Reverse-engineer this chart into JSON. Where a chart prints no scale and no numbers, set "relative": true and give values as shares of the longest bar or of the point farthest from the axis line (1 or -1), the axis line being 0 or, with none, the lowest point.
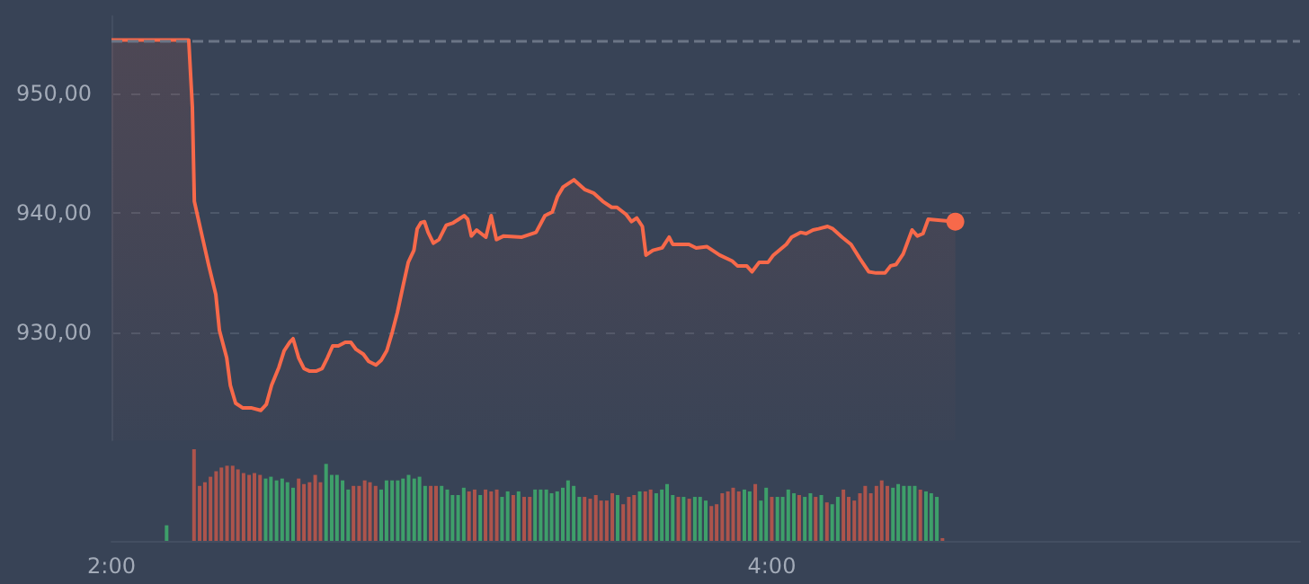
{
  "chart_data": [
    {
      "type": "area",
      "color": "#f7694a",
      "grid": "y",
      "tick_labels": "y",
      "xlim": [
        2,
        5.6
      ],
      "ylim": [
        921,
        956.5
      ],
      "yticks": [
        {
          "value": 930,
          "label": "930,00"
        },
        {
          "value": 940,
          "label": "940,00"
        },
        {
          "value": 950,
          "label": "950,00"
        }
      ],
      "ref_lines": [
        {
          "axis": "y",
          "value": 954.5,
          "line_style": "dashed",
          "color": "#6b7586"
        }
      ],
      "x": [
        2.0,
        2.234,
        2.245,
        2.251,
        2.272,
        2.294,
        2.316,
        2.327,
        2.349,
        2.36,
        2.376,
        2.398,
        2.425,
        2.452,
        2.469,
        2.485,
        2.507,
        2.523,
        2.54,
        2.55,
        2.567,
        2.583,
        2.599,
        2.621,
        2.638,
        2.654,
        2.67,
        2.687,
        2.708,
        2.725,
        2.741,
        2.763,
        2.779,
        2.801,
        2.817,
        2.834,
        2.85,
        2.866,
        2.883,
        2.899,
        2.916,
        2.926,
        2.937,
        2.948,
        2.959,
        2.975,
        2.992,
        3.003,
        3.014,
        3.035,
        3.052,
        3.068,
        3.079,
        3.09,
        3.106,
        3.134,
        3.15,
        3.166,
        3.188,
        3.243,
        3.286,
        3.313,
        3.335,
        3.351,
        3.368,
        3.401,
        3.433,
        3.46,
        3.488,
        3.515,
        3.531,
        3.559,
        3.575,
        3.591,
        3.608,
        3.619,
        3.64,
        3.668,
        3.689,
        3.7,
        3.749,
        3.771,
        3.804,
        3.842,
        3.88,
        3.896,
        3.924,
        3.94,
        3.962,
        3.989,
        4.005,
        4.044,
        4.06,
        4.087,
        4.104,
        4.125,
        4.142,
        4.169,
        4.185,
        4.213,
        4.24,
        4.267,
        4.294,
        4.316,
        4.343,
        4.36,
        4.376,
        4.398,
        4.425,
        4.441,
        4.458,
        4.474,
        4.556
      ],
      "values": [
        954.5,
        954.5,
        948.9,
        941.0,
        938.4,
        935.7,
        933.2,
        930.2,
        927.9,
        925.6,
        924.1,
        923.7,
        923.7,
        923.5,
        924.0,
        925.6,
        927.1,
        928.5,
        929.2,
        929.5,
        927.9,
        927.0,
        926.8,
        926.8,
        927.0,
        927.9,
        928.9,
        928.9,
        929.2,
        929.2,
        928.6,
        928.2,
        927.6,
        927.3,
        927.7,
        928.5,
        930.0,
        931.7,
        933.9,
        935.9,
        936.9,
        938.7,
        939.2,
        939.3,
        938.4,
        937.5,
        937.8,
        938.4,
        939.0,
        939.2,
        939.5,
        939.8,
        939.5,
        938.1,
        938.6,
        938.0,
        939.8,
        937.8,
        938.1,
        938.0,
        938.4,
        939.8,
        940.1,
        941.4,
        942.2,
        942.8,
        942.0,
        941.7,
        941.0,
        940.5,
        940.5,
        939.9,
        939.3,
        939.6,
        938.9,
        936.5,
        936.9,
        937.1,
        938.0,
        937.4,
        937.4,
        937.1,
        937.2,
        936.5,
        936.0,
        935.6,
        935.6,
        935.1,
        935.9,
        935.9,
        936.5,
        937.4,
        938.0,
        938.4,
        938.3,
        938.6,
        938.7,
        938.9,
        938.7,
        938.0,
        937.4,
        936.2,
        935.1,
        935.0,
        935.0,
        935.6,
        935.7,
        936.6,
        938.6,
        938.1,
        938.3,
        939.5,
        939.3
      ]
    },
    {
      "type": "bar",
      "relative": true,
      "tick_labels": "x",
      "xlim": [
        2,
        5.6
      ],
      "xticks": [
        {
          "value": 2,
          "label": "2:00"
        },
        {
          "value": 4,
          "label": "4:00"
        }
      ],
      "x": [
        2.167,
        2.25,
        2.267,
        2.283,
        2.3,
        2.317,
        2.333,
        2.35,
        2.367,
        2.383,
        2.4,
        2.417,
        2.433,
        2.45,
        2.467,
        2.483,
        2.5,
        2.517,
        2.533,
        2.55,
        2.567,
        2.583,
        2.6,
        2.617,
        2.633,
        2.65,
        2.667,
        2.683,
        2.7,
        2.717,
        2.733,
        2.75,
        2.767,
        2.783,
        2.8,
        2.817,
        2.833,
        2.85,
        2.867,
        2.883,
        2.9,
        2.917,
        2.933,
        2.95,
        2.967,
        2.983,
        3.0,
        3.017,
        3.033,
        3.05,
        3.067,
        3.083,
        3.1,
        3.117,
        3.133,
        3.15,
        3.167,
        3.183,
        3.2,
        3.217,
        3.233,
        3.25,
        3.267,
        3.283,
        3.3,
        3.317,
        3.333,
        3.35,
        3.367,
        3.383,
        3.4,
        3.417,
        3.433,
        3.45,
        3.467,
        3.483,
        3.5,
        3.517,
        3.533,
        3.55,
        3.567,
        3.583,
        3.6,
        3.617,
        3.633,
        3.65,
        3.667,
        3.683,
        3.7,
        3.717,
        3.733,
        3.75,
        3.767,
        3.783,
        3.8,
        3.817,
        3.833,
        3.85,
        3.867,
        3.883,
        3.9,
        3.917,
        3.933,
        3.95,
        3.967,
        3.983,
        4.0,
        4.017,
        4.033,
        4.05,
        4.067,
        4.083,
        4.1,
        4.117,
        4.133,
        4.15,
        4.167,
        4.183,
        4.2,
        4.217,
        4.233,
        4.25,
        4.267,
        4.283,
        4.3,
        4.317,
        4.333,
        4.35,
        4.367,
        4.383,
        4.4,
        4.417,
        4.433,
        4.45,
        4.467,
        4.483,
        4.5,
        4.517
      ],
      "values": [
        0.17,
        1.0,
        0.6,
        0.64,
        0.7,
        0.76,
        0.8,
        0.82,
        0.82,
        0.78,
        0.74,
        0.72,
        0.74,
        0.72,
        0.68,
        0.7,
        0.66,
        0.68,
        0.64,
        0.58,
        0.68,
        0.62,
        0.64,
        0.72,
        0.64,
        0.84,
        0.72,
        0.72,
        0.66,
        0.56,
        0.6,
        0.6,
        0.66,
        0.64,
        0.6,
        0.56,
        0.66,
        0.66,
        0.66,
        0.68,
        0.72,
        0.68,
        0.7,
        0.6,
        0.6,
        0.6,
        0.6,
        0.56,
        0.5,
        0.5,
        0.58,
        0.54,
        0.56,
        0.5,
        0.56,
        0.54,
        0.56,
        0.48,
        0.54,
        0.5,
        0.54,
        0.48,
        0.48,
        0.56,
        0.56,
        0.56,
        0.52,
        0.54,
        0.58,
        0.66,
        0.6,
        0.48,
        0.48,
        0.46,
        0.5,
        0.44,
        0.44,
        0.52,
        0.5,
        0.4,
        0.48,
        0.5,
        0.54,
        0.54,
        0.56,
        0.52,
        0.56,
        0.62,
        0.5,
        0.48,
        0.48,
        0.46,
        0.48,
        0.48,
        0.44,
        0.38,
        0.4,
        0.52,
        0.54,
        0.58,
        0.54,
        0.56,
        0.54,
        0.62,
        0.44,
        0.58,
        0.48,
        0.48,
        0.48,
        0.56,
        0.52,
        0.5,
        0.48,
        0.52,
        0.48,
        0.5,
        0.42,
        0.4,
        0.48,
        0.56,
        0.48,
        0.44,
        0.52,
        0.6,
        0.52,
        0.6,
        0.66,
        0.6,
        0.58,
        0.62,
        0.6,
        0.6,
        0.6,
        0.56,
        0.54,
        0.52,
        0.48,
        0.03
      ],
      "colors": [
        "#3e9f6a",
        "#ad544c",
        "#ad544c",
        "#ad544c",
        "#ad544c",
        "#ad544c",
        "#ad544c",
        "#ad544c",
        "#ad544c",
        "#ad544c",
        "#ad544c",
        "#ad544c",
        "#ad544c",
        "#ad544c",
        "#3e9f6a",
        "#3e9f6a",
        "#3e9f6a",
        "#3e9f6a",
        "#3e9f6a",
        "#3e9f6a",
        "#ad544c",
        "#ad544c",
        "#ad544c",
        "#ad544c",
        "#ad544c",
        "#3e9f6a",
        "#3e9f6a",
        "#3e9f6a",
        "#3e9f6a",
        "#3e9f6a",
        "#ad544c",
        "#ad544c",
        "#ad544c",
        "#ad544c",
        "#ad544c",
        "#3e9f6a",
        "#3e9f6a",
        "#3e9f6a",
        "#3e9f6a",
        "#3e9f6a",
        "#3e9f6a",
        "#3e9f6a",
        "#3e9f6a",
        "#3e9f6a",
        "#ad544c",
        "#ad544c",
        "#3e9f6a",
        "#3e9f6a",
        "#3e9f6a",
        "#3e9f6a",
        "#3e9f6a",
        "#ad544c",
        "#ad544c",
        "#3e9f6a",
        "#ad544c",
        "#ad544c",
        "#ad544c",
        "#3e9f6a",
        "#3e9f6a",
        "#ad544c",
        "#3e9f6a",
        "#ad544c",
        "#ad544c",
        "#3e9f6a",
        "#3e9f6a",
        "#3e9f6a",
        "#3e9f6a",
        "#3e9f6a",
        "#3e9f6a",
        "#3e9f6a",
        "#3e9f6a",
        "#3e9f6a",
        "#ad544c",
        "#ad544c",
        "#ad544c",
        "#ad544c",
        "#ad544c",
        "#ad544c",
        "#3e9f6a",
        "#ad544c",
        "#ad544c",
        "#ad544c",
        "#3e9f6a",
        "#ad544c",
        "#ad544c",
        "#3e9f6a",
        "#3e9f6a",
        "#3e9f6a",
        "#3e9f6a",
        "#ad544c",
        "#3e9f6a",
        "#ad544c",
        "#3e9f6a",
        "#3e9f6a",
        "#3e9f6a",
        "#ad544c",
        "#ad544c",
        "#ad544c",
        "#ad544c",
        "#ad544c",
        "#ad544c",
        "#3e9f6a",
        "#3e9f6a",
        "#ad544c",
        "#3e9f6a",
        "#3e9f6a",
        "#ad544c",
        "#3e9f6a",
        "#3e9f6a",
        "#3e9f6a",
        "#3e9f6a",
        "#ad544c",
        "#3e9f6a",
        "#3e9f6a",
        "#ad544c",
        "#3e9f6a",
        "#ad544c",
        "#3e9f6a",
        "#3e9f6a",
        "#ad544c",
        "#ad544c",
        "#ad544c",
        "#ad544c",
        "#ad544c",
        "#ad544c",
        "#ad544c",
        "#ad544c",
        "#ad544c",
        "#3e9f6a",
        "#3e9f6a",
        "#3e9f6a",
        "#3e9f6a",
        "#3e9f6a",
        "#ad544c",
        "#3e9f6a",
        "#3e9f6a",
        "#3e9f6a",
        "#ad544c"
      ]
    }
  ]
}
